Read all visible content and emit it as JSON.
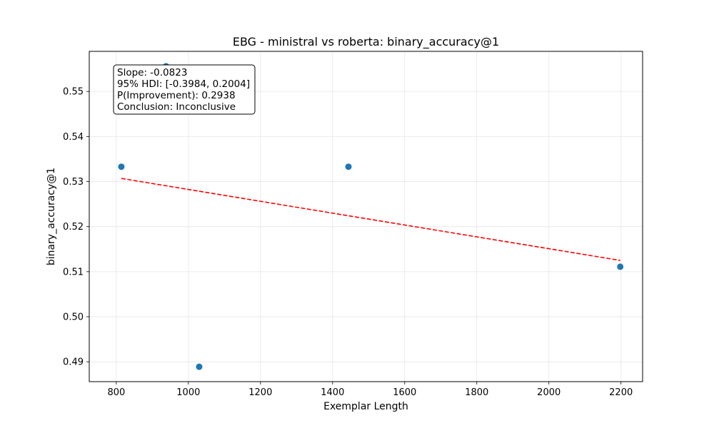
{
  "chart_data": {
    "type": "scatter",
    "title": "EBG - ministral vs roberta: binary_accuracy@1",
    "xlabel": "Exemplar Length",
    "ylabel": "binary_accuracy@1",
    "xlim": [
      725,
      2260
    ],
    "ylim": [
      0.4856,
      0.5589
    ],
    "xticks": [
      800,
      1000,
      1200,
      1400,
      1600,
      1800,
      2000,
      2200
    ],
    "yticks": [
      0.49,
      0.5,
      0.51,
      0.52,
      0.53,
      0.54,
      0.55
    ],
    "grid": true,
    "points": [
      {
        "x": 814,
        "y": 0.5333
      },
      {
        "x": 938,
        "y": 0.5556
      },
      {
        "x": 1030,
        "y": 0.4889
      },
      {
        "x": 1444,
        "y": 0.5333
      },
      {
        "x": 2198,
        "y": 0.5111
      }
    ],
    "trendline": {
      "x": [
        814,
        2198
      ],
      "y": [
        0.5307,
        0.5125
      ],
      "style": "dashed"
    },
    "annotation": [
      "Slope: -0.0823",
      "95% HDI: [-0.3984, 0.2004]",
      "P(Improvement): 0.2938",
      "Conclusion: Inconclusive"
    ],
    "colors": {
      "points": "#1f77b4",
      "trendline": "#ff0000",
      "grid": "#e6e6e6"
    }
  }
}
